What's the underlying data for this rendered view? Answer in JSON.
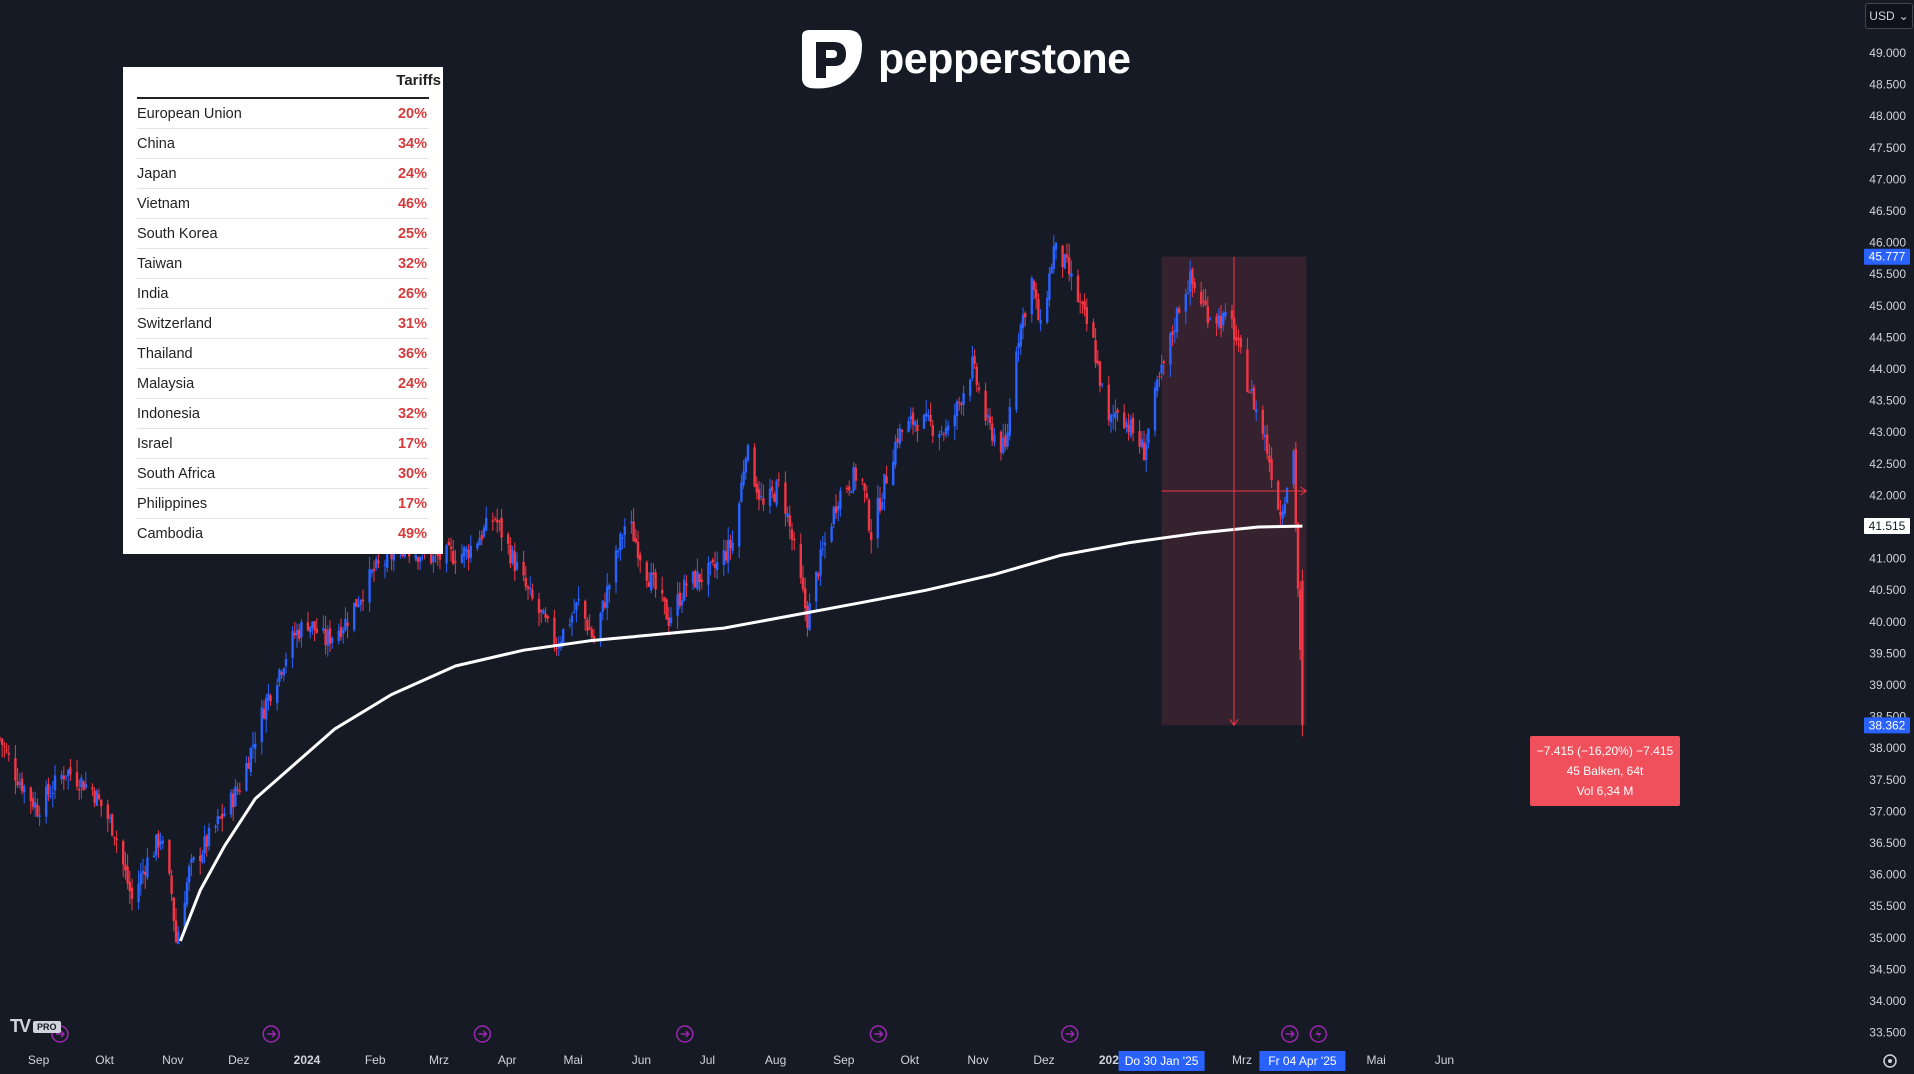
{
  "brand": {
    "name": "pepperstone"
  },
  "currency_button": {
    "label": "USD",
    "chevron": "chevron-down-icon"
  },
  "tradingview_badge": {
    "logo": "TV",
    "tier": "PRO"
  },
  "tariff_table": {
    "header": "Tariffs",
    "rows": [
      {
        "country": "European Union",
        "rate": "20%"
      },
      {
        "country": "China",
        "rate": "34%"
      },
      {
        "country": "Japan",
        "rate": "24%"
      },
      {
        "country": "Vietnam",
        "rate": "46%"
      },
      {
        "country": "South Korea",
        "rate": "25%"
      },
      {
        "country": "Taiwan",
        "rate": "32%"
      },
      {
        "country": "India",
        "rate": "26%"
      },
      {
        "country": "Switzerland",
        "rate": "31%"
      },
      {
        "country": "Thailand",
        "rate": "36%"
      },
      {
        "country": "Malaysia",
        "rate": "24%"
      },
      {
        "country": "Indonesia",
        "rate": "32%"
      },
      {
        "country": "Israel",
        "rate": "17%"
      },
      {
        "country": "South Africa",
        "rate": "30%"
      },
      {
        "country": "Philippines",
        "rate": "17%"
      },
      {
        "country": "Cambodia",
        "rate": "49%"
      }
    ]
  },
  "measure_box": {
    "line1": "−7.415 (−16,20%) −7.415",
    "line2": "45 Balken, 64t",
    "line3": "Vol 6,34 M"
  },
  "price_badges": {
    "range_top": "45.777",
    "moving_average": "41.515",
    "last_price": "38.362"
  },
  "time_badges": {
    "range_start": "Do 30 Jan '25",
    "range_end": "Fr 04 Apr '25"
  },
  "colors": {
    "background": "#161a25",
    "up": "#2962ff",
    "down": "#f23645",
    "ma": "#ffffff",
    "range_fill": "#3a2330",
    "badge_blue": "#2962ff"
  },
  "chart_data": {
    "type": "candlestick",
    "title": "",
    "ylim": [
      33.5,
      49.0
    ],
    "y_ticks": [
      "49.000",
      "48.500",
      "48.000",
      "47.500",
      "47.000",
      "46.500",
      "46.000",
      "45.500",
      "45.000",
      "44.500",
      "44.000",
      "43.500",
      "43.000",
      "42.500",
      "42.000",
      "41.500",
      "41.000",
      "40.500",
      "40.000",
      "39.500",
      "39.000",
      "38.500",
      "38.000",
      "37.500",
      "37.000",
      "36.500",
      "36.000",
      "35.500",
      "35.000",
      "34.500",
      "34.000",
      "33.500"
    ],
    "x_labels": [
      "Sep",
      "Okt",
      "Nov",
      "Dez",
      "2024",
      "Feb",
      "Mrz",
      "Apr",
      "Mai",
      "Jun",
      "Jul",
      "Aug",
      "Sep",
      "Okt",
      "Nov",
      "Dez",
      "2025",
      "Mrz",
      "Mai",
      "Jun"
    ],
    "price_path": [
      [
        "2023-08-21",
        38.15
      ],
      [
        "2023-08-28",
        37.6
      ],
      [
        "2023-09-07",
        37.05
      ],
      [
        "2023-09-20",
        37.65
      ],
      [
        "2023-10-02",
        37.35
      ],
      [
        "2023-10-12",
        36.7
      ],
      [
        "2023-10-20",
        35.6
      ],
      [
        "2023-10-26",
        36.15
      ],
      [
        "2023-11-02",
        36.6
      ],
      [
        "2023-11-07",
        35.7
      ],
      [
        "2023-11-09",
        34.95
      ],
      [
        "2023-11-15",
        36.05
      ],
      [
        "2023-11-27",
        36.75
      ],
      [
        "2023-12-08",
        37.4
      ],
      [
        "2023-12-20",
        38.75
      ],
      [
        "2024-01-02",
        39.8
      ],
      [
        "2024-01-08",
        40.0
      ],
      [
        "2024-01-16",
        39.7
      ],
      [
        "2024-01-25",
        40.0
      ],
      [
        "2024-02-07",
        40.8
      ],
      [
        "2024-02-20",
        41.2
      ],
      [
        "2024-03-05",
        41.0
      ],
      [
        "2024-03-20",
        41.1
      ],
      [
        "2024-04-02",
        41.65
      ],
      [
        "2024-04-17",
        40.45
      ],
      [
        "2024-04-30",
        39.65
      ],
      [
        "2024-05-10",
        40.3
      ],
      [
        "2024-05-17",
        39.7
      ],
      [
        "2024-06-01",
        41.65
      ],
      [
        "2024-06-10",
        40.8
      ],
      [
        "2024-06-20",
        40.05
      ],
      [
        "2024-06-28",
        40.6
      ],
      [
        "2024-07-10",
        40.8
      ],
      [
        "2024-07-20",
        41.3
      ],
      [
        "2024-07-25",
        42.75
      ],
      [
        "2024-08-02",
        41.8
      ],
      [
        "2024-08-10",
        42.2
      ],
      [
        "2024-08-22",
        40.05
      ],
      [
        "2024-08-27",
        40.85
      ],
      [
        "2024-09-05",
        42.0
      ],
      [
        "2024-09-15",
        42.4
      ],
      [
        "2024-09-20",
        41.4
      ],
      [
        "2024-10-02",
        42.95
      ],
      [
        "2024-10-10",
        43.2
      ],
      [
        "2024-10-25",
        43.0
      ],
      [
        "2024-11-05",
        44.05
      ],
      [
        "2024-11-12",
        43.1
      ],
      [
        "2024-11-20",
        42.7
      ],
      [
        "2024-11-25",
        44.4
      ],
      [
        "2024-12-02",
        45.4
      ],
      [
        "2024-12-06",
        44.6
      ],
      [
        "2024-12-12",
        45.9
      ],
      [
        "2024-12-18",
        45.6
      ],
      [
        "2024-12-30",
        44.4
      ],
      [
        "2025-01-06",
        43.1
      ],
      [
        "2025-01-10",
        43.4
      ],
      [
        "2025-01-22",
        42.7
      ],
      [
        "2025-01-28",
        43.7
      ],
      [
        "2025-02-02",
        44.3
      ],
      [
        "2025-02-08",
        45.15
      ],
      [
        "2025-02-12",
        45.4
      ],
      [
        "2025-02-20",
        44.9
      ],
      [
        "2025-03-03",
        44.7
      ],
      [
        "2025-03-10",
        43.8
      ],
      [
        "2025-03-18",
        42.9
      ],
      [
        "2025-03-25",
        41.7
      ],
      [
        "2025-03-31",
        42.7
      ],
      [
        "2025-04-04",
        38.362
      ]
    ],
    "moving_average": [
      [
        "2023-11-11",
        34.95
      ],
      [
        "2023-11-20",
        35.75
      ],
      [
        "2023-12-01",
        36.45
      ],
      [
        "2023-12-15",
        37.2
      ],
      [
        "2024-01-02",
        37.75
      ],
      [
        "2024-01-20",
        38.3
      ],
      [
        "2024-02-15",
        38.85
      ],
      [
        "2024-03-15",
        39.3
      ],
      [
        "2024-04-15",
        39.55
      ],
      [
        "2024-05-15",
        39.7
      ],
      [
        "2024-06-15",
        39.8
      ],
      [
        "2024-07-15",
        39.9
      ],
      [
        "2024-08-15",
        40.1
      ],
      [
        "2024-09-15",
        40.3
      ],
      [
        "2024-10-15",
        40.5
      ],
      [
        "2024-11-15",
        40.75
      ],
      [
        "2024-12-15",
        41.05
      ],
      [
        "2025-01-15",
        41.25
      ],
      [
        "2025-02-15",
        41.4
      ],
      [
        "2025-03-15",
        41.5
      ],
      [
        "2025-04-04",
        41.515
      ]
    ],
    "measured_range": {
      "start": "2025-01-30",
      "end": "2025-04-04",
      "high": 45.777,
      "low": 38.362,
      "change": -7.415,
      "change_pct": -16.2
    }
  }
}
